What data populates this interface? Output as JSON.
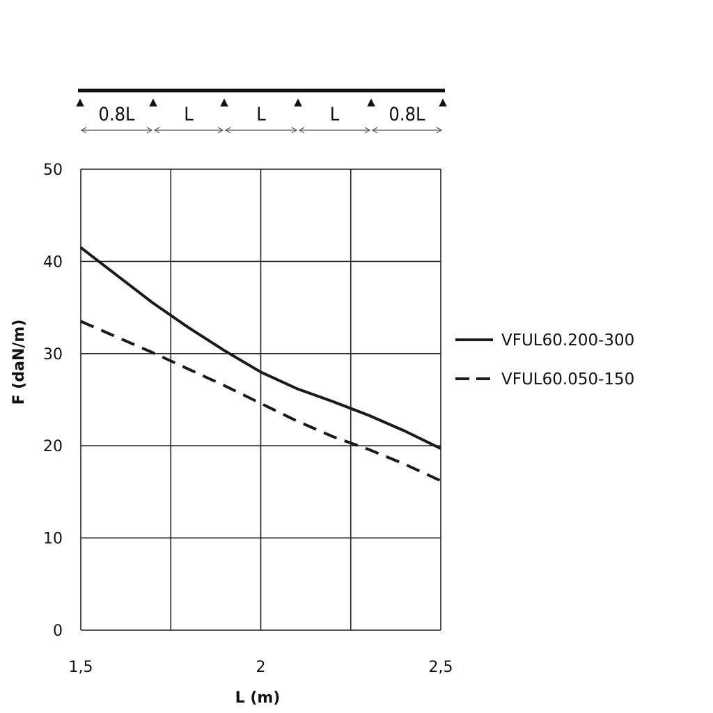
{
  "chart_data": {
    "type": "line",
    "xlabel": "L (m)",
    "ylabel": "F (daN/m)",
    "xlim": [
      1.5,
      2.5
    ],
    "ylim": [
      0,
      50
    ],
    "x_ticks": [
      {
        "value": 1.5,
        "label": "1,5"
      },
      {
        "value": 2,
        "label": "2"
      },
      {
        "value": 2.5,
        "label": "2,5"
      }
    ],
    "y_ticks": [
      {
        "value": 0,
        "label": "0"
      },
      {
        "value": 10,
        "label": "10"
      },
      {
        "value": 20,
        "label": "20"
      },
      {
        "value": 30,
        "label": "30"
      },
      {
        "value": 40,
        "label": "40"
      },
      {
        "value": 50,
        "label": "50"
      }
    ],
    "x_grid": [
      1.5,
      1.75,
      2.0,
      2.25,
      2.5
    ],
    "grid": true,
    "legend_position": "right",
    "series": [
      {
        "name": "VFUL60.200-300",
        "style": "solid",
        "color": "#1a1a1a",
        "x": [
          1.5,
          1.6,
          1.7,
          1.8,
          1.9,
          2.0,
          2.1,
          2.2,
          2.3,
          2.4,
          2.5
        ],
        "y": [
          41.5,
          38.5,
          35.5,
          32.8,
          30.3,
          28.0,
          26.2,
          24.8,
          23.3,
          21.6,
          19.7
        ]
      },
      {
        "name": "VFUL60.050-150",
        "style": "dashed",
        "color": "#1a1a1a",
        "x": [
          1.5,
          1.6,
          1.7,
          1.8,
          1.9,
          2.0,
          2.1,
          2.2,
          2.3,
          2.4,
          2.5
        ],
        "y": [
          33.5,
          31.8,
          30.1,
          28.3,
          26.5,
          24.6,
          22.7,
          21.0,
          19.6,
          18.0,
          16.2
        ]
      }
    ],
    "span_diagram": {
      "labels": [
        "0.8L",
        "L",
        "L",
        "L",
        "0.8L"
      ],
      "support_symbol": "▲"
    }
  }
}
